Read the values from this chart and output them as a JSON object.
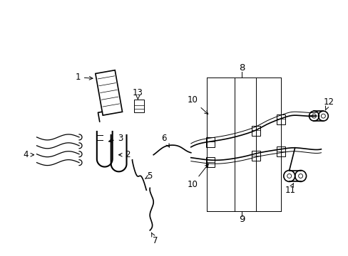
{
  "bg_color": "#ffffff",
  "line_color": "#000000",
  "fig_width": 4.89,
  "fig_height": 3.6,
  "dpi": 100,
  "font_size": 8.5,
  "lw_main": 1.2,
  "lw_thin": 0.7
}
